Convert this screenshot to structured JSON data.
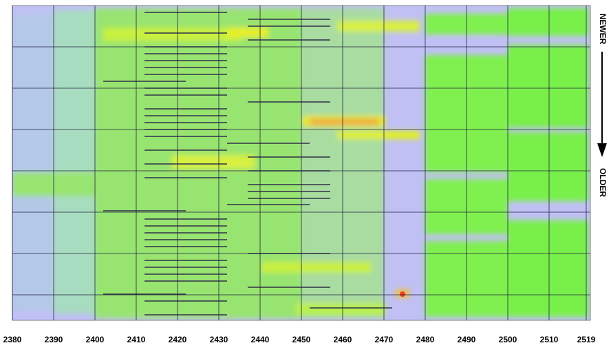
{
  "chart_data": {
    "type": "waterfall",
    "xlim": [
      2380,
      2520
    ],
    "xticks": [
      2380,
      2390,
      2400,
      2410,
      2420,
      2430,
      2440,
      2450,
      2460,
      2470,
      2480,
      2490,
      2500,
      2510,
      2519
    ],
    "grid": true,
    "annotations": {
      "top": "NEWER",
      "bottom": "OLDER"
    }
  }
}
